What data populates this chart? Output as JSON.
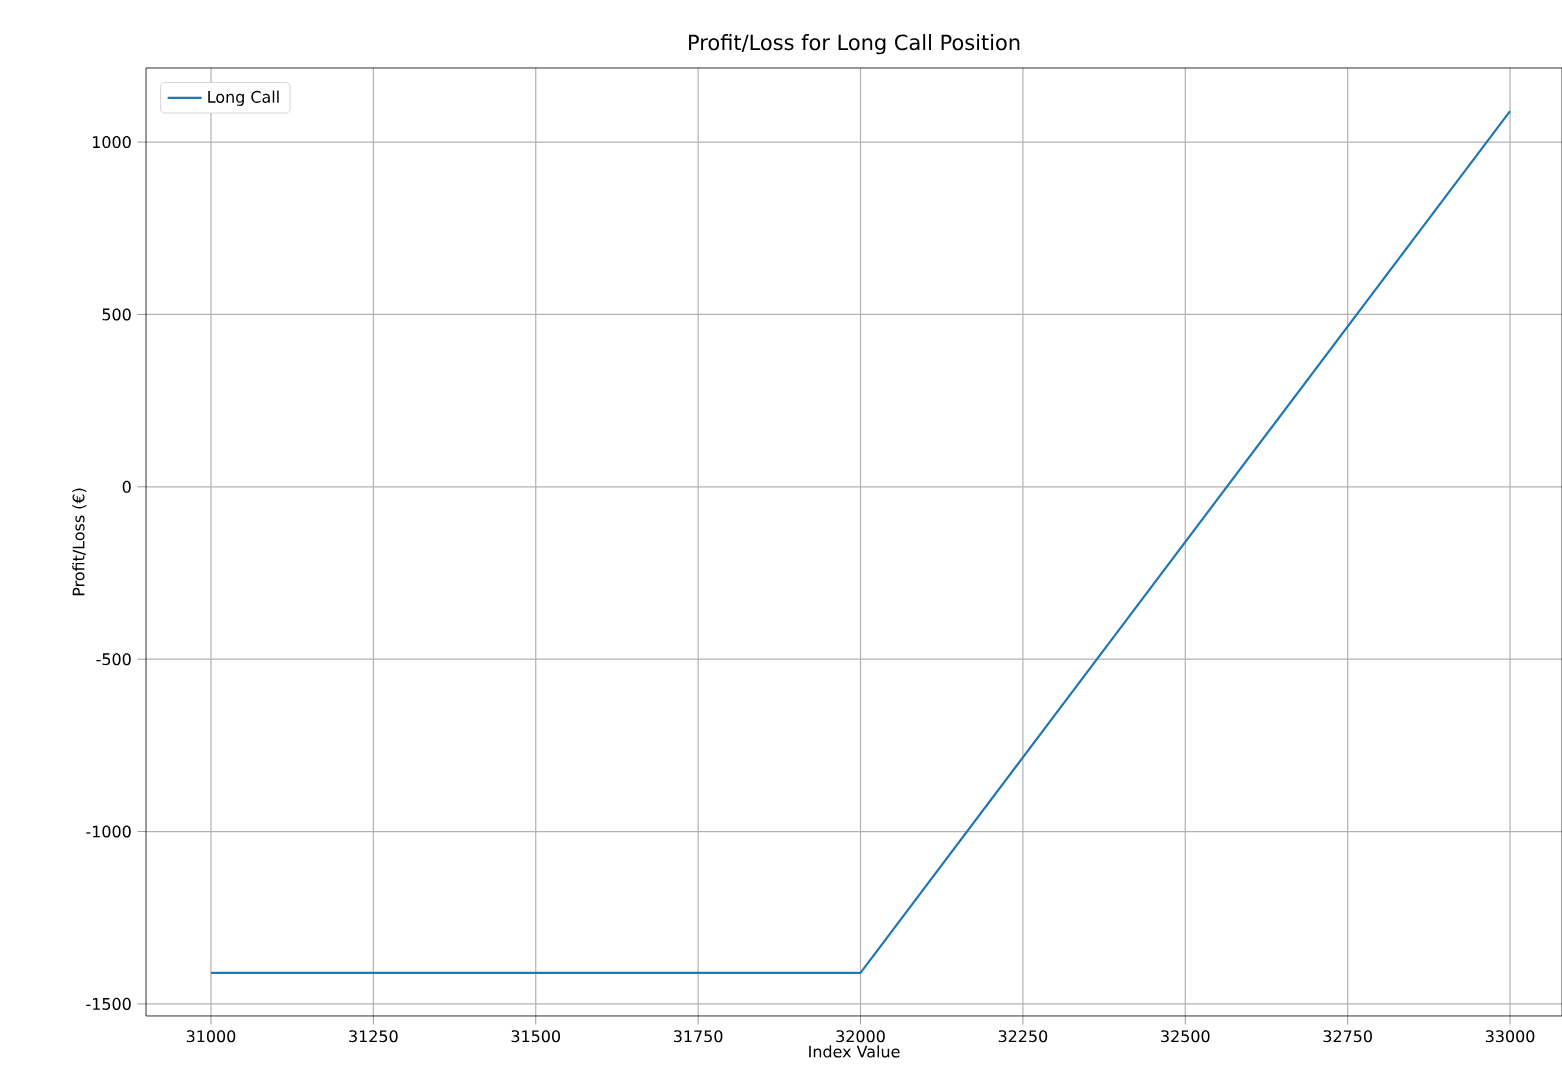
{
  "chart_data": {
    "type": "line",
    "title": "Profit/Loss for Long Call Position",
    "xlabel": "Index Value",
    "ylabel": "Profit/Loss (€)",
    "x": [
      31000,
      32000,
      33000
    ],
    "series": [
      {
        "name": "Long Call",
        "color": "#1f77b4",
        "values": [
          -1410,
          -1410,
          1090
        ]
      }
    ],
    "xlim": [
      30900,
      33080
    ],
    "ylim": [
      -1535,
      1215
    ],
    "xticks": [
      31000,
      31250,
      31500,
      31750,
      32000,
      32250,
      32500,
      32750,
      33000
    ],
    "yticks": [
      -1500,
      -1000,
      -500,
      0,
      500,
      1000
    ],
    "grid": true,
    "legend": "top left",
    "marker": "none",
    "line_style": "solid"
  }
}
